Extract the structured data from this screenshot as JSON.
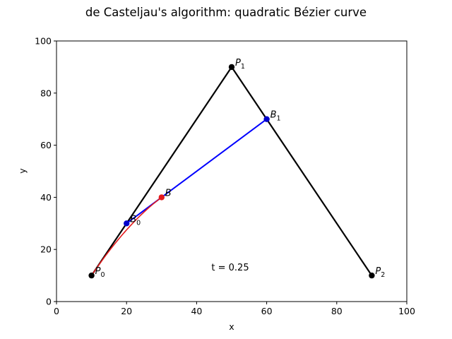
{
  "chart_data": {
    "type": "line",
    "title": "de Casteljau's algorithm: quadratic Bézier curve",
    "xlabel": "x",
    "ylabel": "y",
    "xlim": [
      0,
      100
    ],
    "ylim": [
      0,
      100
    ],
    "xticks": [
      0,
      20,
      40,
      60,
      80,
      100
    ],
    "yticks": [
      0,
      20,
      40,
      60,
      80,
      100
    ],
    "grid": false,
    "t": 0.25,
    "annotation": "t = 0.25",
    "control_points": [
      {
        "name": "P",
        "sub": "0",
        "x": 10,
        "y": 10
      },
      {
        "name": "P",
        "sub": "1",
        "x": 50,
        "y": 90
      },
      {
        "name": "P",
        "sub": "2",
        "x": 90,
        "y": 10
      }
    ],
    "intermediate_points": [
      {
        "name": "B",
        "sub": "0",
        "x": 20,
        "y": 30
      },
      {
        "name": "B",
        "sub": "1",
        "x": 60,
        "y": 70
      }
    ],
    "curve_point": {
      "name": "B",
      "sub": "",
      "x": 30,
      "y": 40
    },
    "colors": {
      "control_polygon": "#000000",
      "intermediate_segment": "#0000ff",
      "curve": "#e41a1c",
      "intermediate_marker": "#0000cc",
      "curve_marker": "#e41a1c"
    }
  }
}
